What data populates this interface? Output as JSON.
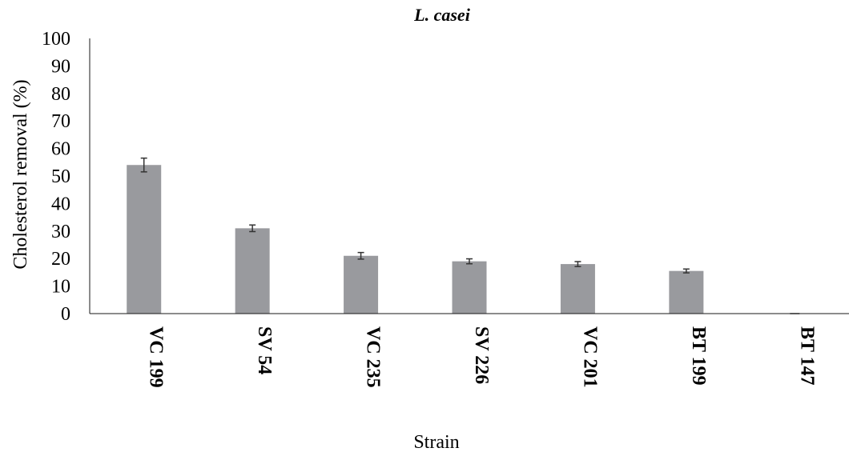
{
  "chart_data": {
    "type": "bar",
    "title": "L. casei",
    "xlabel": "Strain",
    "ylabel": "Cholesterol removal (%)",
    "ylim": [
      0,
      100
    ],
    "yticks": [
      0,
      10,
      20,
      30,
      40,
      50,
      60,
      70,
      80,
      90,
      100
    ],
    "categories": [
      "VC 199",
      "SV 54",
      "VC 235",
      "SV 226",
      "VC 201",
      "BT 199",
      "BT 147"
    ],
    "values": [
      54,
      31,
      21,
      19,
      18,
      15.5,
      0
    ],
    "errors": [
      2.5,
      1.2,
      1.2,
      0.9,
      0.9,
      0.7,
      0
    ],
    "bar_color": "#999a9e",
    "grid": false,
    "legend": "none"
  }
}
